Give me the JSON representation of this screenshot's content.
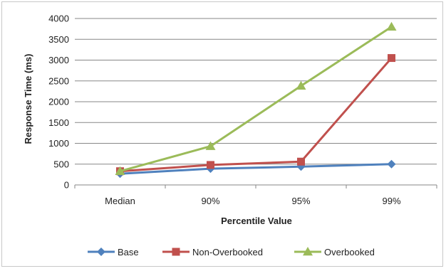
{
  "chart_data": {
    "type": "line",
    "title": "",
    "xlabel": "Percentile Value",
    "ylabel": "Response Time (ms)",
    "categories": [
      "Median",
      "90%",
      "95%",
      "99%"
    ],
    "ylim": [
      0,
      4000
    ],
    "yticks": [
      0,
      500,
      1000,
      1500,
      2000,
      2500,
      3000,
      3500,
      4000
    ],
    "grid": "horizontal",
    "legend_position": "bottom",
    "series": [
      {
        "name": "Base",
        "color": "#4F81BD",
        "marker": "diamond",
        "values": [
          270,
          390,
          440,
          500
        ]
      },
      {
        "name": "Non-Overbooked",
        "color": "#C0504D",
        "marker": "square",
        "values": [
          330,
          480,
          560,
          3050
        ]
      },
      {
        "name": "Overbooked",
        "color": "#9BBB59",
        "marker": "triangle",
        "values": [
          330,
          930,
          2380,
          3800
        ]
      }
    ]
  }
}
